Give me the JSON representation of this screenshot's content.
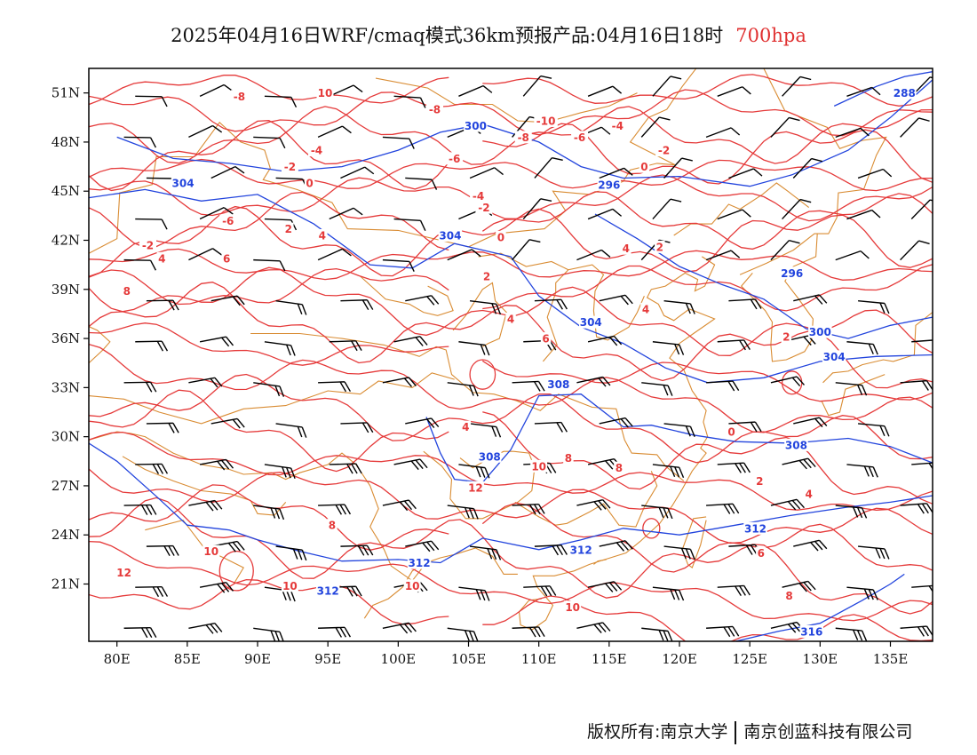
{
  "title": {
    "main": "2025年04月16日WRF/cmaq模式36km预报产品:04月16日18时",
    "level": "700hpa"
  },
  "axes": {
    "lon_min": 78,
    "lon_max": 138,
    "lat_min": 17.5,
    "lat_max": 52.5,
    "x_ticks": [
      "80E",
      "85E",
      "90E",
      "95E",
      "100E",
      "105E",
      "110E",
      "115E",
      "120E",
      "125E",
      "130E",
      "135E"
    ],
    "x_tick_values": [
      80,
      85,
      90,
      95,
      100,
      105,
      110,
      115,
      120,
      125,
      130,
      135
    ],
    "y_ticks": [
      "21N",
      "24N",
      "27N",
      "30N",
      "33N",
      "36N",
      "39N",
      "42N",
      "45N",
      "48N",
      "51N"
    ],
    "y_tick_values": [
      21,
      24,
      27,
      30,
      33,
      36,
      39,
      42,
      45,
      48,
      51
    ]
  },
  "colors": {
    "temperature": "#e53a3a",
    "geopotential": "#2244dd",
    "borders": "#d98c33",
    "wind": "#000000"
  },
  "temperature_labels": [
    {
      "text": "10",
      "lon": 94.8,
      "lat": 51.0
    },
    {
      "text": "-8",
      "lon": 88.7,
      "lat": 50.8
    },
    {
      "text": "-8",
      "lon": 102.6,
      "lat": 50.0
    },
    {
      "text": "-10",
      "lon": 110.5,
      "lat": 49.3
    },
    {
      "text": "-8",
      "lon": 108.9,
      "lat": 48.3
    },
    {
      "text": "-6",
      "lon": 112.9,
      "lat": 48.3
    },
    {
      "text": "-4",
      "lon": 115.6,
      "lat": 49.0
    },
    {
      "text": "-2",
      "lon": 118.9,
      "lat": 47.5
    },
    {
      "text": "-4",
      "lon": 94.2,
      "lat": 47.5
    },
    {
      "text": "-6",
      "lon": 104.0,
      "lat": 47.0
    },
    {
      "text": "-2",
      "lon": 92.3,
      "lat": 46.5
    },
    {
      "text": "0",
      "lon": 93.7,
      "lat": 45.5
    },
    {
      "text": "0",
      "lon": 117.5,
      "lat": 46.5
    },
    {
      "text": "-4",
      "lon": 105.7,
      "lat": 44.7
    },
    {
      "text": "-2",
      "lon": 106.1,
      "lat": 44.0
    },
    {
      "text": "-6",
      "lon": 87.9,
      "lat": 43.2
    },
    {
      "text": "2",
      "lon": 92.2,
      "lat": 42.7
    },
    {
      "text": "4",
      "lon": 94.6,
      "lat": 42.3
    },
    {
      "text": "0",
      "lon": 107.3,
      "lat": 42.2
    },
    {
      "text": "-2",
      "lon": 82.2,
      "lat": 41.7
    },
    {
      "text": "4",
      "lon": 83.2,
      "lat": 40.9
    },
    {
      "text": "6",
      "lon": 87.8,
      "lat": 40.9
    },
    {
      "text": "4",
      "lon": 116.2,
      "lat": 41.5
    },
    {
      "text": "2",
      "lon": 118.6,
      "lat": 41.6
    },
    {
      "text": "2",
      "lon": 106.3,
      "lat": 39.8
    },
    {
      "text": "8",
      "lon": 80.7,
      "lat": 38.9
    },
    {
      "text": "4",
      "lon": 108.0,
      "lat": 37.2
    },
    {
      "text": "4",
      "lon": 117.6,
      "lat": 37.8
    },
    {
      "text": "6",
      "lon": 110.5,
      "lat": 36.0
    },
    {
      "text": "2",
      "lon": 127.6,
      "lat": 36.1
    },
    {
      "text": "4",
      "lon": 104.8,
      "lat": 30.6
    },
    {
      "text": "0",
      "lon": 123.7,
      "lat": 30.3
    },
    {
      "text": "8",
      "lon": 112.1,
      "lat": 28.7
    },
    {
      "text": "10",
      "lon": 110.0,
      "lat": 28.2
    },
    {
      "text": "12",
      "lon": 105.5,
      "lat": 26.9
    },
    {
      "text": "8",
      "lon": 115.7,
      "lat": 28.1
    },
    {
      "text": "2",
      "lon": 125.7,
      "lat": 27.3
    },
    {
      "text": "4",
      "lon": 129.2,
      "lat": 26.5
    },
    {
      "text": "8",
      "lon": 95.3,
      "lat": 24.6
    },
    {
      "text": "10",
      "lon": 86.7,
      "lat": 23.0
    },
    {
      "text": "12",
      "lon": 80.5,
      "lat": 21.7
    },
    {
      "text": "6",
      "lon": 125.8,
      "lat": 22.9
    },
    {
      "text": "10",
      "lon": 92.3,
      "lat": 20.9
    },
    {
      "text": "10",
      "lon": 101.0,
      "lat": 20.9
    },
    {
      "text": "10",
      "lon": 112.4,
      "lat": 19.6
    },
    {
      "text": "8",
      "lon": 127.8,
      "lat": 20.3
    }
  ],
  "height_labels": [
    {
      "text": "288",
      "lon": 136.0,
      "lat": 51.0
    },
    {
      "text": "300",
      "lon": 105.5,
      "lat": 49.0
    },
    {
      "text": "304",
      "lon": 84.7,
      "lat": 45.5
    },
    {
      "text": "296",
      "lon": 115.0,
      "lat": 45.4
    },
    {
      "text": "304",
      "lon": 103.7,
      "lat": 42.3
    },
    {
      "text": "296",
      "lon": 128.0,
      "lat": 40.0
    },
    {
      "text": "304",
      "lon": 113.7,
      "lat": 37.0
    },
    {
      "text": "300",
      "lon": 130.0,
      "lat": 36.4
    },
    {
      "text": "308",
      "lon": 111.4,
      "lat": 33.2
    },
    {
      "text": "304",
      "lon": 131.0,
      "lat": 34.9
    },
    {
      "text": "308",
      "lon": 106.5,
      "lat": 28.8
    },
    {
      "text": "308",
      "lon": 128.3,
      "lat": 29.5
    },
    {
      "text": "312",
      "lon": 125.4,
      "lat": 24.4
    },
    {
      "text": "312",
      "lon": 113.0,
      "lat": 23.1
    },
    {
      "text": "312",
      "lon": 101.5,
      "lat": 22.3
    },
    {
      "text": "312",
      "lon": 95.0,
      "lat": 20.6
    },
    {
      "text": "316",
      "lon": 129.4,
      "lat": 18.1
    }
  ],
  "footer": {
    "left": "版权所有:南京大学",
    "right": "南京创蓝科技有限公司"
  }
}
